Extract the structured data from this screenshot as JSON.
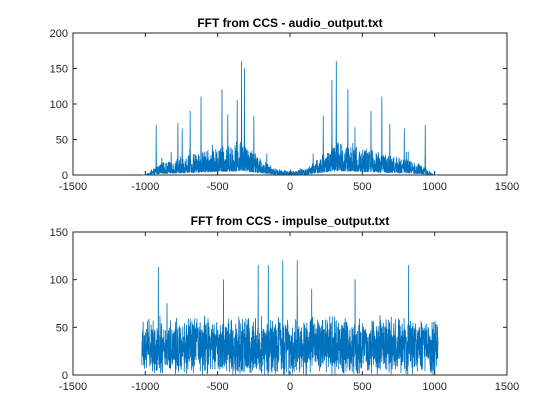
{
  "figure": {
    "background": "#ffffff"
  },
  "chart_data": [
    {
      "type": "line",
      "title": "FFT from CCS - audio_output.txt",
      "xlabel": "",
      "ylabel": "",
      "xlim": [
        -1500,
        1500
      ],
      "ylim": [
        0,
        200
      ],
      "xticks": [
        -1500,
        -1000,
        -500,
        0,
        500,
        1000,
        1500
      ],
      "yticks": [
        0,
        50,
        100,
        150,
        200
      ],
      "grid": false,
      "color": "#0072BD",
      "signal_domain": [
        -1024,
        1023
      ],
      "series": [
        {
          "name": "",
          "description": "dense spectrum, symmetric about 0, near zero outside about |x|>1000; envelope roughly: 0 at -1000, ~15 at -900, ~25 at -700, ~40 at -350, ~10 at -100, ~5 at 0, ~10 at 100, ~40 at 350, ~25 at 700, ~15 at 900, 0 at 1000",
          "peaks": [
            {
              "x": -925,
              "y": 70
            },
            {
              "x": -775,
              "y": 73
            },
            {
              "x": -745,
              "y": 65
            },
            {
              "x": -690,
              "y": 90
            },
            {
              "x": -615,
              "y": 110
            },
            {
              "x": -470,
              "y": 120
            },
            {
              "x": -430,
              "y": 85
            },
            {
              "x": -365,
              "y": 105
            },
            {
              "x": -335,
              "y": 160
            },
            {
              "x": -315,
              "y": 150
            },
            {
              "x": -250,
              "y": 83
            },
            {
              "x": -160,
              "y": 30
            },
            {
              "x": 160,
              "y": 30
            },
            {
              "x": 230,
              "y": 83
            },
            {
              "x": 290,
              "y": 133
            },
            {
              "x": 320,
              "y": 160
            },
            {
              "x": 400,
              "y": 120
            },
            {
              "x": 560,
              "y": 90
            },
            {
              "x": 635,
              "y": 110
            },
            {
              "x": 690,
              "y": 72
            },
            {
              "x": 790,
              "y": 65
            },
            {
              "x": 935,
              "y": 70
            }
          ]
        }
      ]
    },
    {
      "type": "line",
      "title": "FFT from CCS - impulse_output.txt",
      "xlabel": "",
      "ylabel": "",
      "xlim": [
        -1500,
        1500
      ],
      "ylim": [
        0,
        150
      ],
      "xticks": [
        -1500,
        -1000,
        -500,
        0,
        500,
        1000,
        1500
      ],
      "yticks": [
        0,
        50,
        100,
        150
      ],
      "grid": false,
      "color": "#0072BD",
      "signal_domain": [
        -1024,
        1023
      ],
      "series": [
        {
          "name": "",
          "description": "noisy spectrum spanning -1024 to 1023, mean around 30, values mostly 0 to 80",
          "baseline_mean": 30,
          "peaks": [
            {
              "x": -1020,
              "y": 45
            },
            {
              "x": -910,
              "y": 113
            },
            {
              "x": -850,
              "y": 75
            },
            {
              "x": -460,
              "y": 100
            },
            {
              "x": -220,
              "y": 115
            },
            {
              "x": -150,
              "y": 115
            },
            {
              "x": -50,
              "y": 120
            },
            {
              "x": 50,
              "y": 120
            },
            {
              "x": 150,
              "y": 90
            },
            {
              "x": 450,
              "y": 100
            },
            {
              "x": 820,
              "y": 115
            },
            {
              "x": 1020,
              "y": 50
            }
          ]
        }
      ]
    }
  ]
}
